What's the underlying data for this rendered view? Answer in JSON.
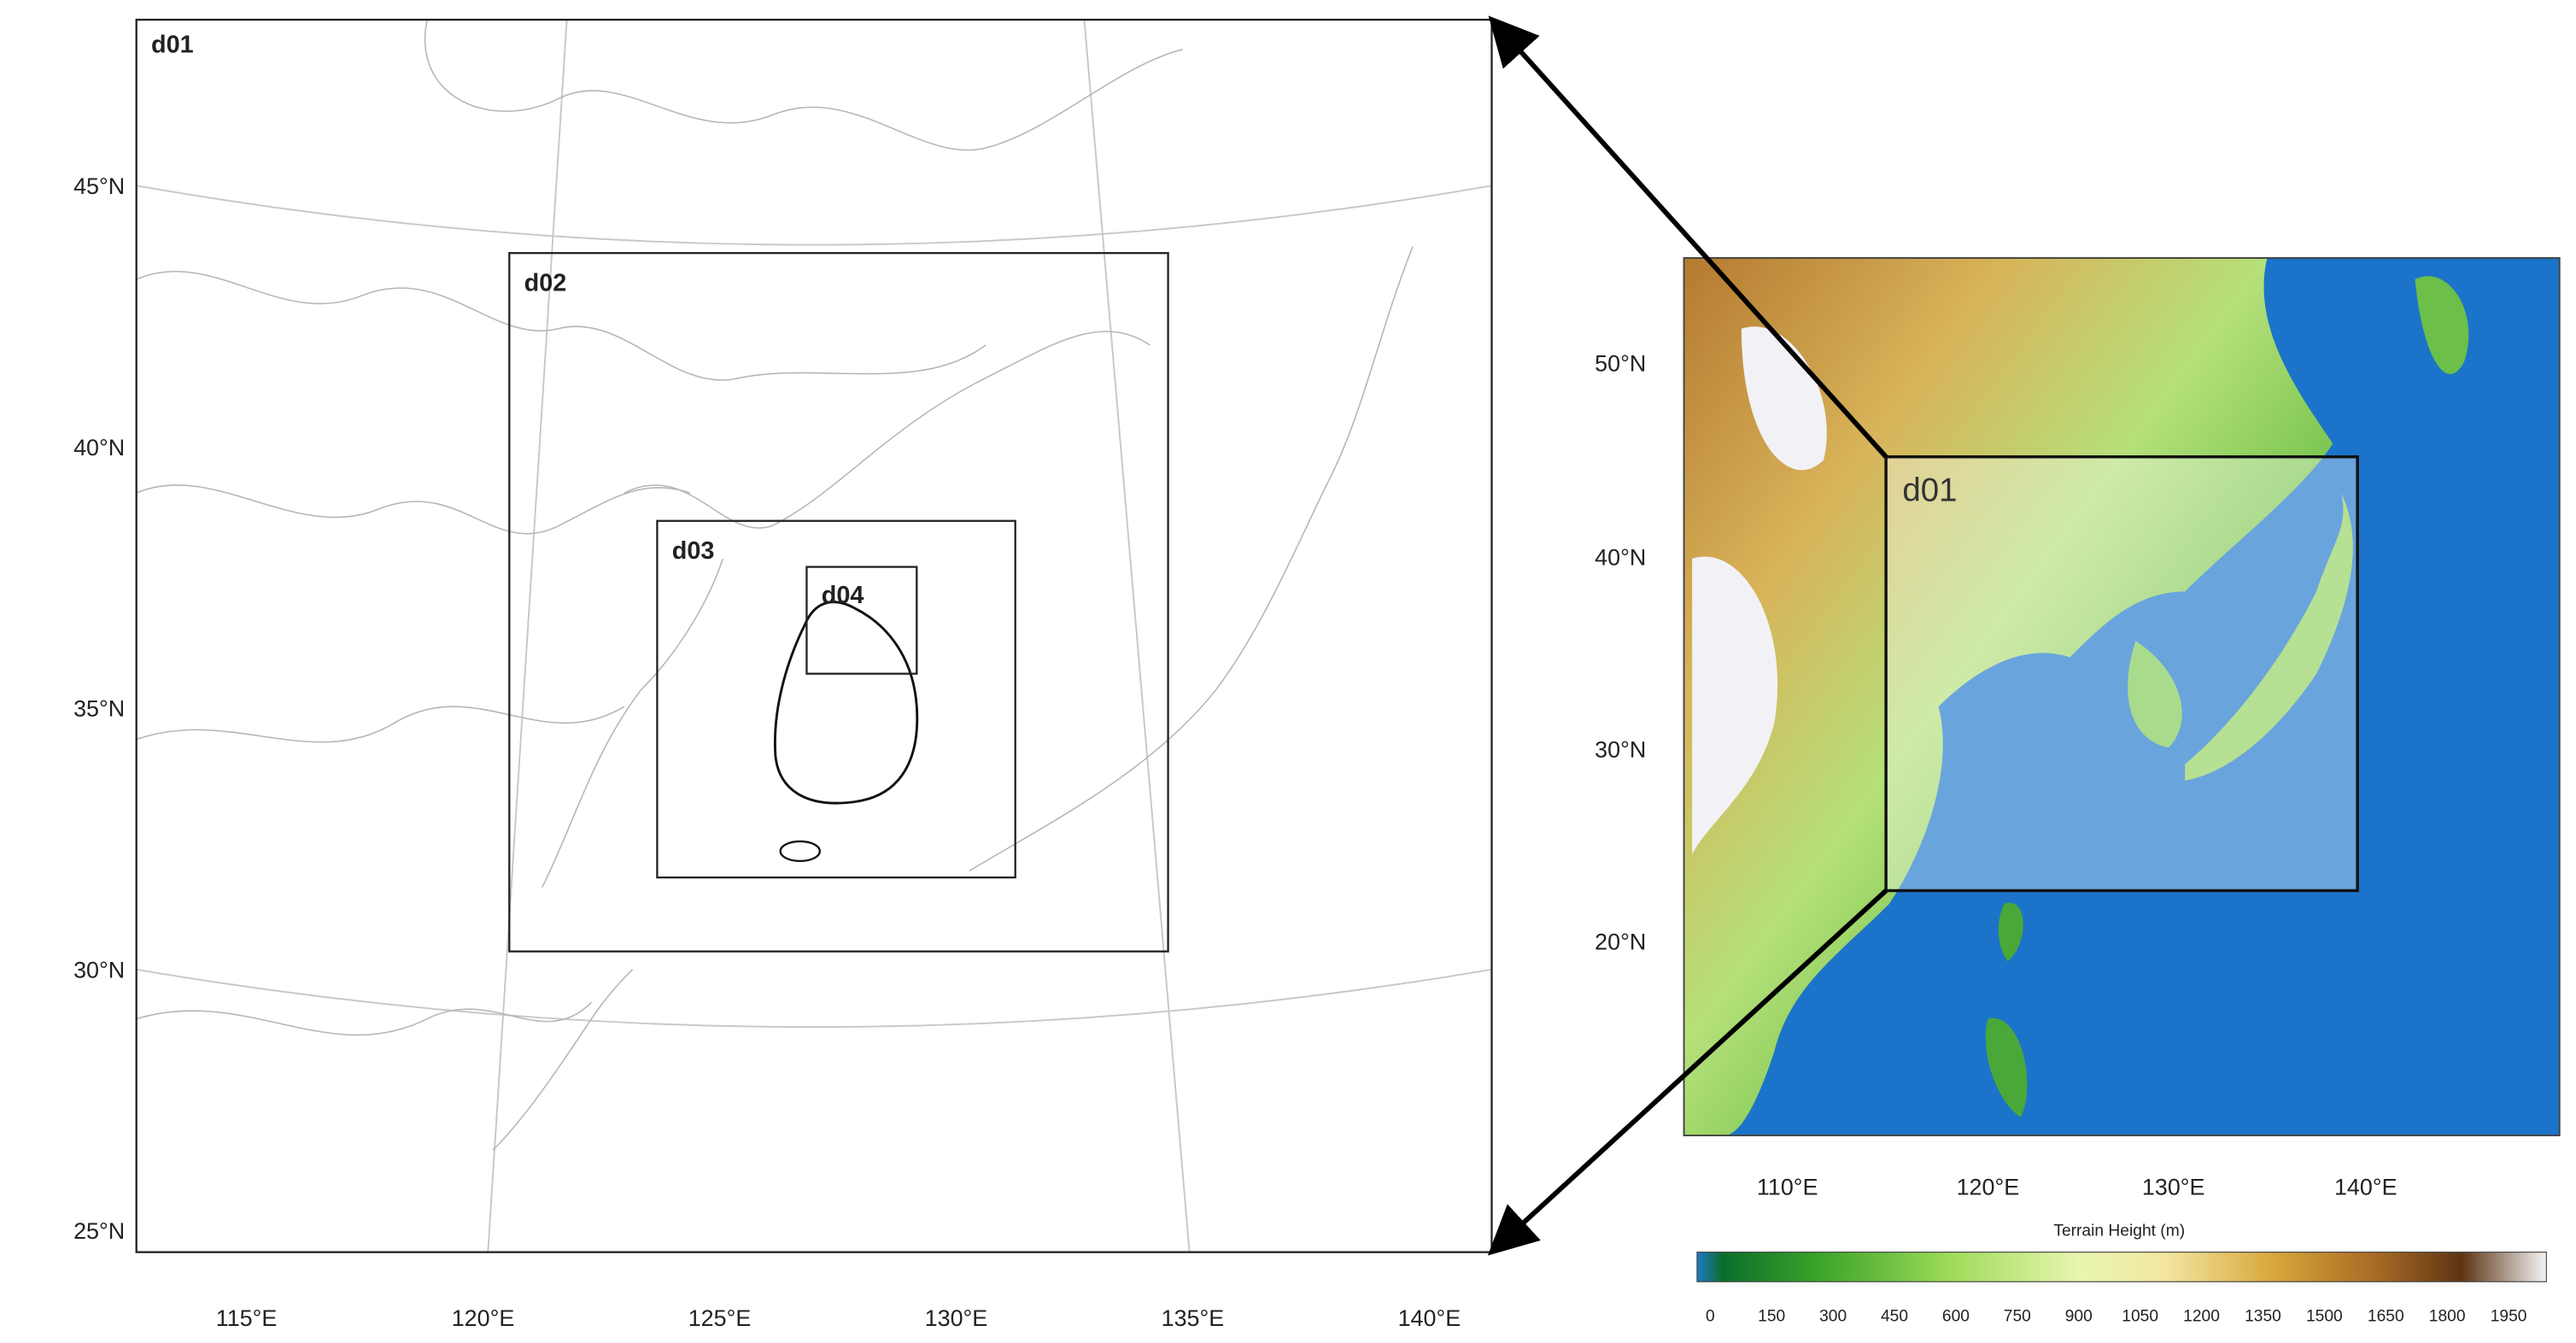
{
  "left_map": {
    "domains": [
      "d01",
      "d02",
      "d03",
      "d04"
    ],
    "lat_labels": [
      "45°N",
      "40°N",
      "35°N",
      "30°N",
      "25°N"
    ],
    "lon_labels": [
      "115°E",
      "120°E",
      "125°E",
      "130°E",
      "135°E",
      "140°E"
    ]
  },
  "right_map": {
    "domain": "d01",
    "lat_labels": [
      "50°N",
      "40°N",
      "30°N",
      "20°N"
    ],
    "lon_labels": [
      "110°E",
      "120°E",
      "130°E",
      "140°E"
    ]
  },
  "colorbar": {
    "title": "Terrain Height  (m)",
    "labels": [
      0,
      150,
      300,
      450,
      600,
      750,
      900,
      1050,
      1200,
      1350,
      1500,
      1650,
      1800,
      1950
    ]
  }
}
